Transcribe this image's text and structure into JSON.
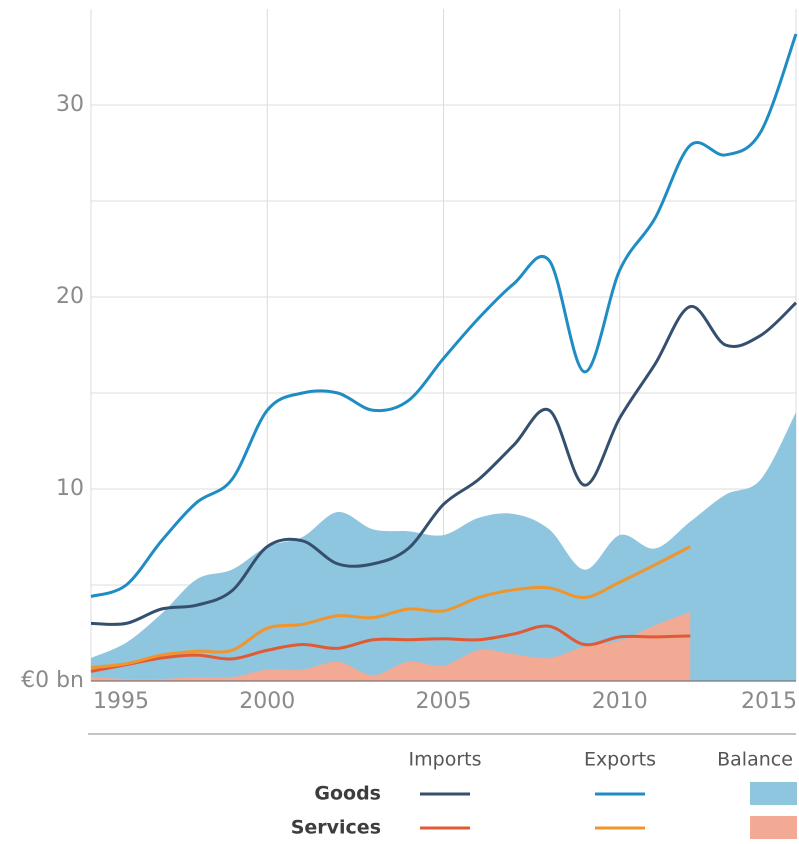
{
  "chart_data": {
    "type": "line",
    "x": [
      1995,
      1996,
      1997,
      1998,
      1999,
      2000,
      2001,
      2002,
      2003,
      2004,
      2005,
      2006,
      2007,
      2008,
      2009,
      2010,
      2011,
      2012,
      2013,
      2014,
      2015
    ],
    "xlim": [
      1995,
      2015
    ],
    "xticks": [
      1995,
      2000,
      2005,
      2010,
      2015
    ],
    "ylim": [
      0,
      35
    ],
    "yticks": [
      {
        "value": 0,
        "label": "€0 bn"
      },
      10,
      20,
      30
    ],
    "ygrid": [
      5,
      10,
      15,
      20,
      25,
      30
    ],
    "grid": true,
    "columns": [
      "Imports",
      "Exports",
      "Balance"
    ],
    "series": [
      {
        "name": "Goods",
        "parts": [
          {
            "kind": "line",
            "color": "#35506e",
            "values": [
              3.0,
              3.0,
              3.75,
              3.95,
              4.7,
              7.0,
              7.3,
              6.1,
              6.1,
              6.9,
              9.2,
              10.5,
              12.3,
              14.1,
              10.2,
              13.7,
              16.5,
              19.5,
              17.5,
              18.0,
              19.7
            ]
          },
          {
            "kind": "line",
            "color": "#1f8cc4",
            "values": [
              4.4,
              5.0,
              7.3,
              9.3,
              10.5,
              14.1,
              15.0,
              15.0,
              14.1,
              14.6,
              16.8,
              18.9,
              20.7,
              21.9,
              16.1,
              21.4,
              24.1,
              27.9,
              27.4,
              28.6,
              33.7
            ]
          },
          {
            "kind": "area",
            "color": "#8ec5df",
            "values": [
              1.2,
              2.0,
              3.5,
              5.3,
              5.8,
              7.0,
              7.5,
              8.8,
              7.9,
              7.8,
              7.6,
              8.5,
              8.7,
              7.9,
              5.8,
              7.6,
              6.9,
              8.3,
              9.7,
              10.5,
              14.0
            ]
          }
        ]
      },
      {
        "name": "Services",
        "parts": [
          {
            "kind": "line",
            "color": "#e05a33",
            "values": [
              0.5,
              0.85,
              1.2,
              1.35,
              1.15,
              1.6,
              1.9,
              1.7,
              2.15,
              2.15,
              2.2,
              2.15,
              2.45,
              2.85,
              1.9,
              2.3,
              2.3,
              2.35,
              null,
              null,
              null
            ]
          },
          {
            "kind": "line",
            "color": "#f0952e",
            "values": [
              0.7,
              0.9,
              1.35,
              1.55,
              1.6,
              2.75,
              2.95,
              3.4,
              3.3,
              3.75,
              3.65,
              4.35,
              4.75,
              4.85,
              4.35,
              5.15,
              6.05,
              7.0,
              null,
              null,
              null
            ]
          },
          {
            "kind": "area",
            "color": "#f3aa94",
            "values": [
              0.2,
              0.1,
              0.1,
              0.2,
              0.2,
              0.6,
              0.6,
              1.0,
              0.3,
              1.0,
              0.8,
              1.6,
              1.4,
              1.2,
              1.8,
              2.1,
              2.9,
              3.6,
              null,
              null,
              null
            ]
          }
        ]
      }
    ]
  }
}
